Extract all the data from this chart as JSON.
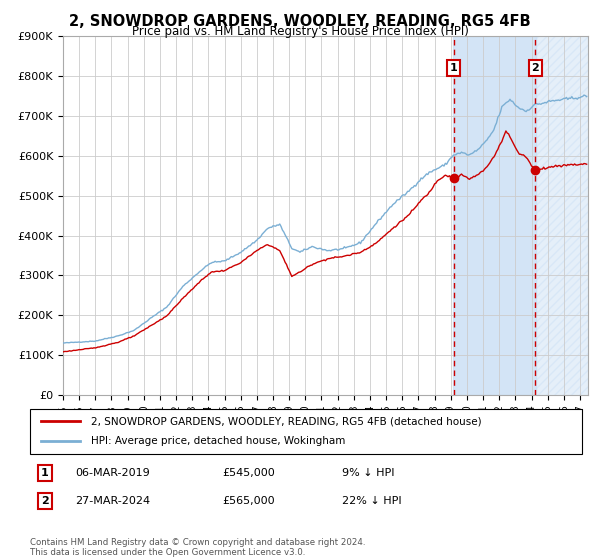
{
  "title": "2, SNOWDROP GARDENS, WOODLEY, READING, RG5 4FB",
  "subtitle": "Price paid vs. HM Land Registry's House Price Index (HPI)",
  "ylim": [
    0,
    900000
  ],
  "yticks": [
    0,
    100000,
    200000,
    300000,
    400000,
    500000,
    600000,
    700000,
    800000,
    900000
  ],
  "ytick_labels": [
    "£0",
    "£100K",
    "£200K",
    "£300K",
    "£400K",
    "£500K",
    "£600K",
    "£700K",
    "£800K",
    "£900K"
  ],
  "hpi_color": "#7bafd4",
  "property_color": "#cc0000",
  "sale1_date": "06-MAR-2019",
  "sale1_price": 545000,
  "sale1_label": "1",
  "sale1_pct": "9% ↓ HPI",
  "sale2_date": "27-MAR-2024",
  "sale2_price": 565000,
  "sale2_label": "2",
  "sale2_pct": "22% ↓ HPI",
  "legend_property": "2, SNOWDROP GARDENS, WOODLEY, READING, RG5 4FB (detached house)",
  "legend_hpi": "HPI: Average price, detached house, Wokingham",
  "footer": "Contains HM Land Registry data © Crown copyright and database right 2024.\nThis data is licensed under the Open Government Licence v3.0.",
  "background_color": "#ffffff",
  "grid_color": "#cccccc",
  "shade_color": "#ddeeff",
  "hatch_color": "#c8dcf0"
}
